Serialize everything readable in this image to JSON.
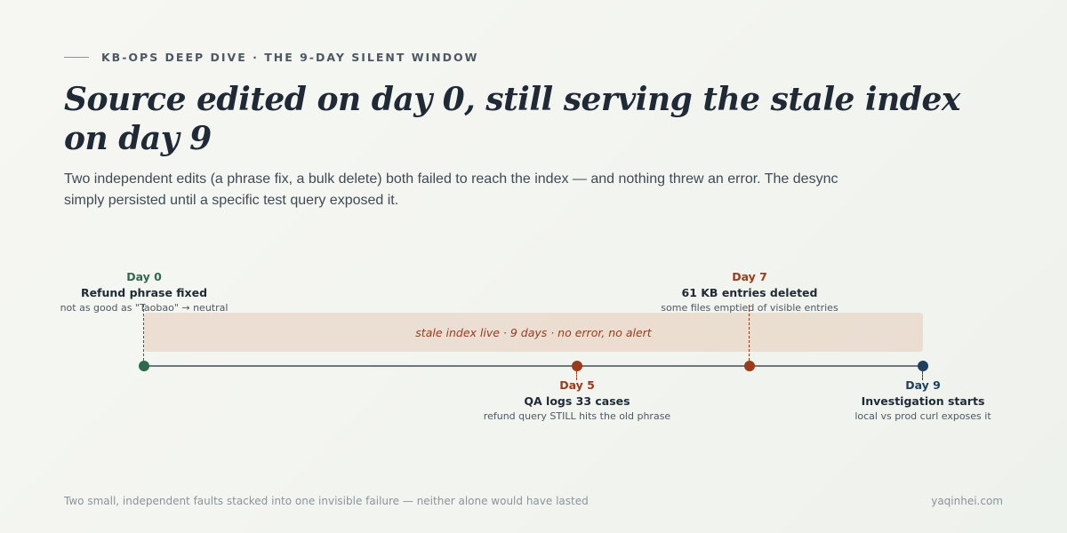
{
  "header": {
    "eyebrow": "KB-OPS DEEP DIVE · THE 9-DAY SILENT WINDOW",
    "title": "Source edited on day 0, still serving the stale index on day 9",
    "subtitle": "Two independent edits (a phrase fix, a bulk delete) both failed to reach the index — and nothing threw an error. The desync simply persisted until a specific test query exposed it."
  },
  "timeline": {
    "band_label": "stale index live · 9 days · no error, no alert",
    "span_days": [
      0,
      9
    ],
    "events": [
      {
        "day": "Day 0",
        "title": "Refund phrase fixed",
        "note": "not as good as \"Taobao\" → neutral",
        "color": "#2e6b4a"
      },
      {
        "day": "Day 5",
        "title": "QA logs 33 cases",
        "note": "refund query STILL hits the old phrase",
        "color": "#9c3a1c"
      },
      {
        "day": "Day 7",
        "title": "61 KB entries deleted",
        "note": "some files emptied of visible entries",
        "color": "#9c3a1c"
      },
      {
        "day": "Day 9",
        "title": "Investigation starts",
        "note": "local vs prod curl exposes it",
        "color": "#1e3f5e"
      }
    ]
  },
  "footer": {
    "caption": "Two small, independent faults stacked into one invisible failure — neither alone would have lasted",
    "site": "yaqinhei.com"
  }
}
